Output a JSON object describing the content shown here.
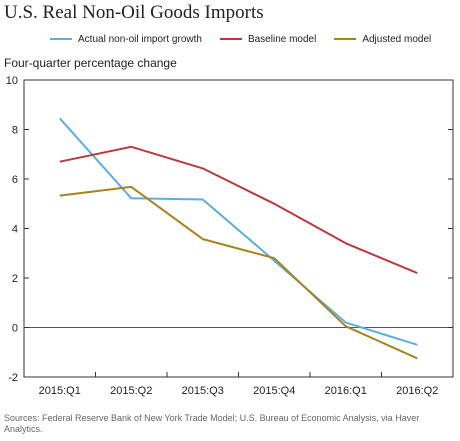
{
  "title": "U.S. Real Non-Oil Goods Imports",
  "source": "Sources: Federal Reserve Bank of New York Trade Model; U.S. Bureau of Economic Analysis, via Haver Analytics.",
  "chart_data": {
    "type": "line",
    "title": "U.S. Real Non-Oil Goods Imports",
    "ylabel": "Four-quarter percentage change",
    "xlabel": "",
    "categories": [
      "2015:Q1",
      "2015:Q2",
      "2015:Q3",
      "2015:Q4",
      "2016:Q1",
      "2016:Q2"
    ],
    "ylim": [
      -2,
      10
    ],
    "yticks": [
      -2,
      0,
      2,
      4,
      6,
      8,
      10
    ],
    "grid": false,
    "legend_position": "top",
    "series": [
      {
        "name": "Actual non-oil import growth",
        "color": "#5aaedc",
        "values": [
          8.45,
          5.22,
          5.17,
          2.7,
          0.2,
          -0.7
        ]
      },
      {
        "name": "Baseline model",
        "color": "#b83a3e",
        "values": [
          6.7,
          7.3,
          6.43,
          5.0,
          3.4,
          2.2
        ]
      },
      {
        "name": "Adjusted model",
        "color": "#a9821d",
        "values": [
          5.33,
          5.68,
          3.57,
          2.8,
          0.05,
          -1.25
        ]
      }
    ]
  }
}
